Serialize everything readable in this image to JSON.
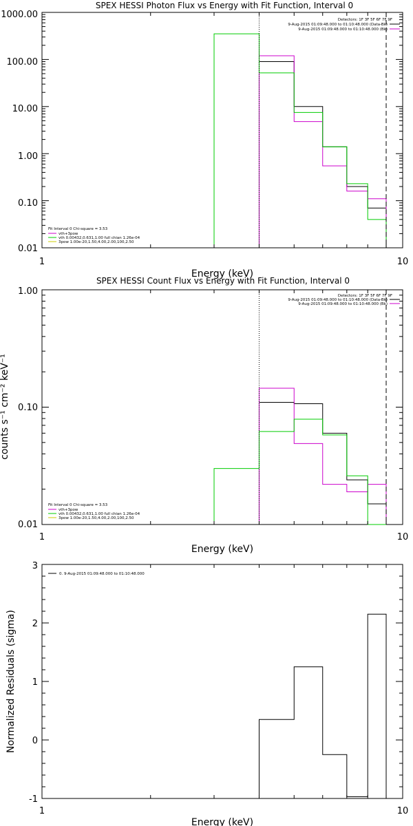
{
  "chart_data": [
    {
      "type": "line",
      "title": "SPEX HESSI Photon Flux vs Energy with Fit Function, Interval 0",
      "xlabel": "Energy (keV)",
      "ylabel": "",
      "xscale": "log",
      "yscale": "log",
      "xlim": [
        1,
        10
      ],
      "ylim": [
        0.01,
        1000
      ],
      "xticks": [
        "1",
        "10"
      ],
      "yticks": [
        "0.01",
        "0.10",
        "1.00",
        "10.00",
        "100.00",
        "1000.00"
      ],
      "legend_header": [
        "Detectors: 1F 3F 5F 6F 7F 9F",
        "9-Aug-2015 01:09:48.000 to 01:10:48.000 (Data-Bk)",
        "9-Aug-2015 01:09:48.000 to 01:10:48.000 (Bk)"
      ],
      "fit_info": [
        "Fit Interval 0   Chi-square = 3.53",
        "vth+3pow",
        "vth 0.00432,0.631,1.00  full chian 1.26e-04",
        "3pow 1.00e-20,1.50,4.00,2.00,100,2.50"
      ],
      "fit_range": [
        4,
        9
      ],
      "series": [
        {
          "name": "Data-Bk",
          "color": "#000000",
          "edges": [
            4,
            5,
            6,
            7,
            8,
            9
          ],
          "values": [
            90,
            10,
            1.4,
            0.2,
            0.07
          ]
        },
        {
          "name": "Bk",
          "color": "#cc00cc",
          "edges": [
            4,
            5,
            6,
            7,
            8,
            9
          ],
          "values": [
            120,
            4.8,
            0.55,
            0.16,
            0.11
          ]
        },
        {
          "name": "vth+3pow",
          "color": "#00cc00",
          "edges": [
            3,
            4,
            5,
            6,
            7,
            8,
            9
          ],
          "values": [
            350,
            52,
            7.5,
            1.4,
            0.23,
            0.04
          ]
        }
      ]
    },
    {
      "type": "line",
      "title": "SPEX HESSI Count Flux vs Energy with Fit Function, Interval 0",
      "xlabel": "Energy (keV)",
      "ylabel": "counts s⁻¹ cm⁻² keV⁻¹",
      "xscale": "log",
      "yscale": "log",
      "xlim": [
        1,
        10
      ],
      "ylim": [
        0.01,
        1
      ],
      "xticks": [
        "1",
        "10"
      ],
      "yticks": [
        "0.01",
        "0.10",
        "1.00"
      ],
      "legend_header": [
        "Detectors: 1F 3F 5F 6F 7F 9F",
        "9-Aug-2015 01:09:48.000 to 01:10:48.000 (Data-Bk)",
        "9-Aug-2015 01:09:48.000 to 01:10:48.000 (Bk)"
      ],
      "fit_info": [
        "Fit Interval 0   Chi-square = 3.53",
        "vth+3pow",
        "vth 0.00432,0.631,1.00  full chian 1.26e-04",
        "3pow 1.00e-20,1.50,4.00,2.00,100,2.50"
      ],
      "fit_range": [
        4,
        9
      ],
      "series": [
        {
          "name": "Data-Bk",
          "color": "#000000",
          "edges": [
            4,
            5,
            6,
            7,
            8,
            9
          ],
          "values": [
            0.11,
            0.107,
            0.06,
            0.024,
            0.015
          ]
        },
        {
          "name": "Bk",
          "color": "#cc00cc",
          "edges": [
            4,
            5,
            6,
            7,
            8,
            9
          ],
          "values": [
            0.145,
            0.049,
            0.022,
            0.019,
            0.022
          ]
        },
        {
          "name": "vth+3pow",
          "color": "#00cc00",
          "edges": [
            3,
            4,
            5,
            6,
            7,
            8,
            9
          ],
          "values": [
            0.03,
            0.062,
            0.079,
            0.058,
            0.026,
            0.01
          ]
        }
      ]
    },
    {
      "type": "line",
      "title": "",
      "xlabel": "Energy (keV)",
      "ylabel": "Normalized Residuals (sigma)",
      "xscale": "log",
      "yscale": "linear",
      "xlim": [
        1,
        10
      ],
      "ylim": [
        -1,
        3
      ],
      "xticks": [
        "1",
        "10"
      ],
      "yticks": [
        "-1",
        "0",
        "1",
        "2",
        "3"
      ],
      "legend_header": [
        "0.  9-Aug-2015 01:09:48.000 to 01:10:48.000"
      ],
      "series": [
        {
          "name": "0.  9-Aug-2015 01:09:48.000 to 01:10:48.000",
          "color": "#000000",
          "edges": [
            4,
            5,
            6,
            7,
            8,
            9
          ],
          "values": [
            0.35,
            1.25,
            -0.25,
            -0.97,
            2.15
          ]
        }
      ]
    }
  ]
}
